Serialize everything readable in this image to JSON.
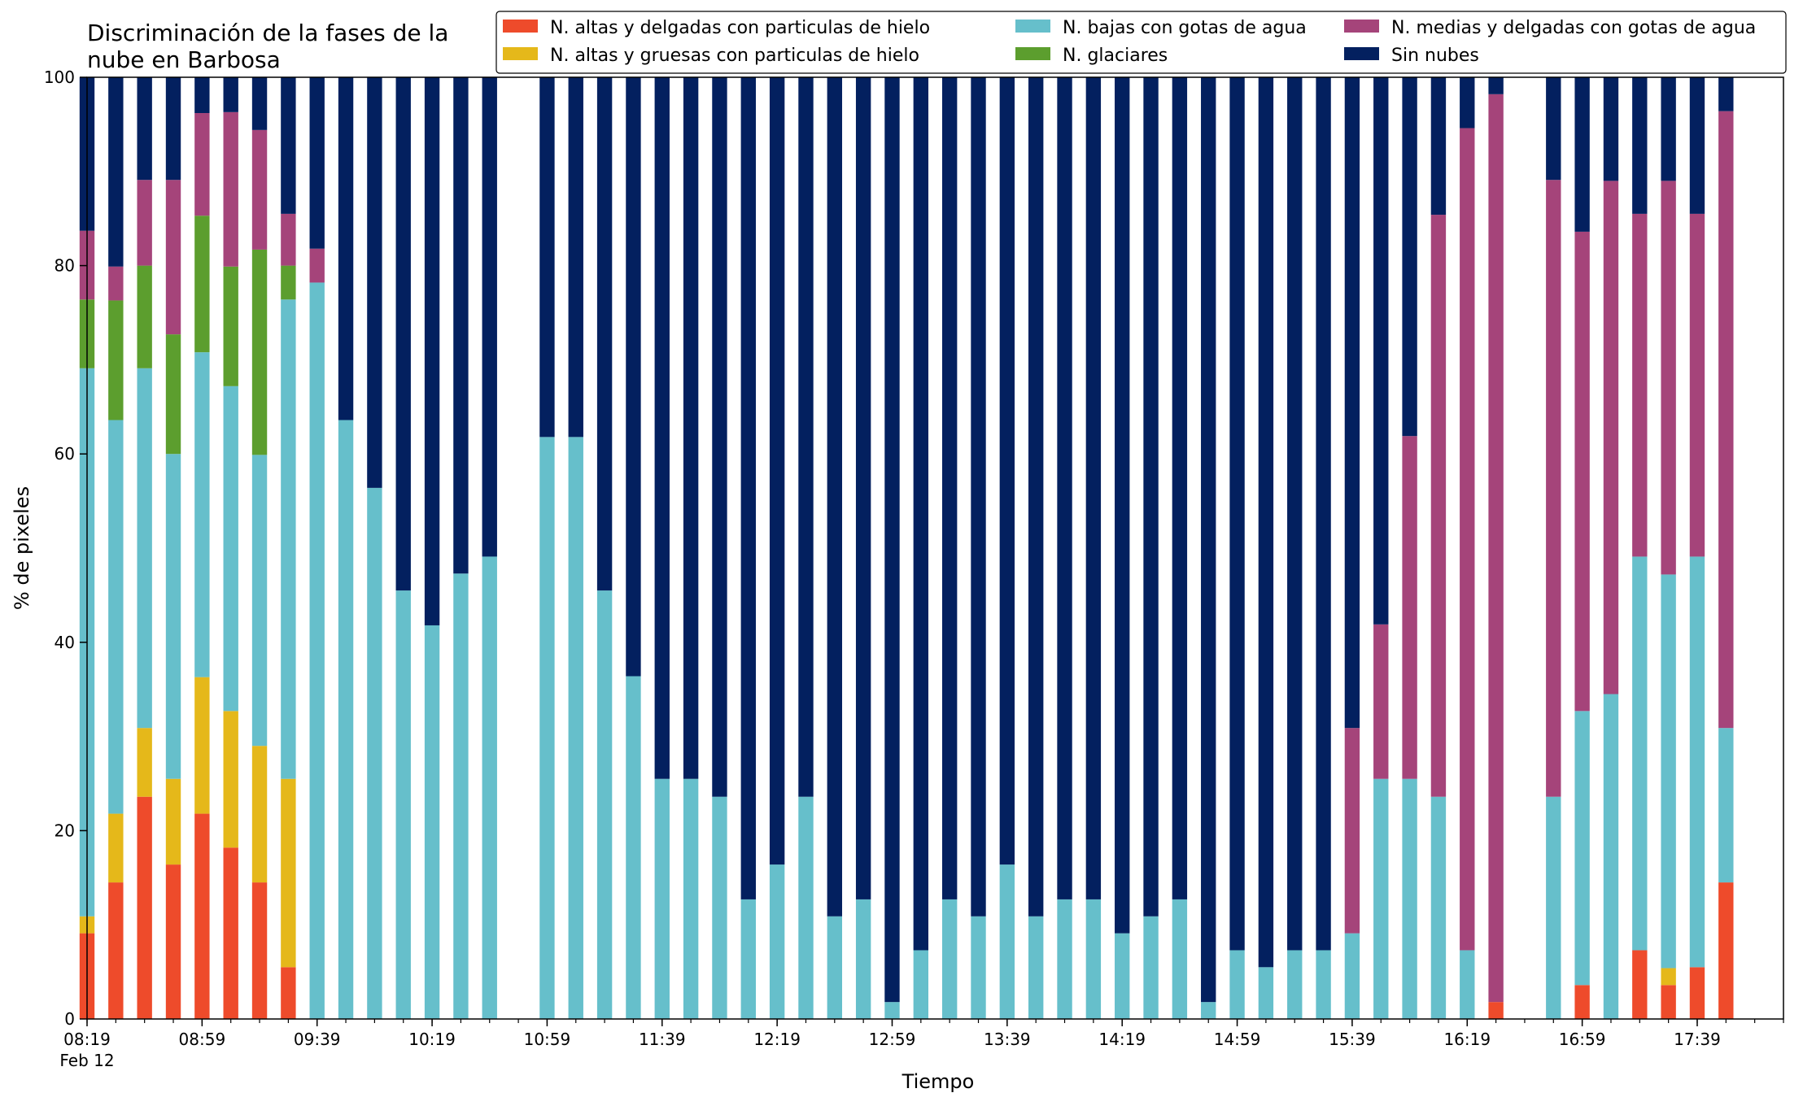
{
  "chart_data": {
    "type": "bar",
    "stacked": true,
    "title": "Discriminación de la fases de la nube en Barbosa",
    "title_lines": [
      "Discriminación de la fases de la",
      "nube en Barbosa"
    ],
    "xlabel": "Tiempo",
    "ylabel": "% de pixeles",
    "ylim": [
      0,
      100
    ],
    "yticks": [
      0,
      20,
      40,
      60,
      80,
      100
    ],
    "xlim_minutes": [
      0,
      590
    ],
    "interval_minutes": 10,
    "x_start_time": "08:19",
    "x_tick_labels": [
      "08:19",
      "08:59",
      "09:39",
      "10:19",
      "10:59",
      "11:39",
      "12:19",
      "12:59",
      "13:39",
      "14:19",
      "14:59",
      "15:39",
      "16:19",
      "16:59",
      "17:39"
    ],
    "x_date_label": "Feb 12",
    "grid": false,
    "legend_position": "top-right",
    "legend": [
      {
        "name": "N. altas y delgadas con particulas de hielo",
        "color": "#ee4b2b"
      },
      {
        "name": "N. altas y gruesas con particulas de hielo",
        "color": "#e5b81a"
      },
      {
        "name": "N. bajas con gotas de agua",
        "color": "#66bfcb"
      },
      {
        "name": "N. glaciares",
        "color": "#5c9e2e"
      },
      {
        "name": "N. medias y delgadas con gotas de agua",
        "color": "#a5447a"
      },
      {
        "name": "Sin nubes",
        "color": "#03205f"
      }
    ],
    "stack_order": [
      "N. altas y delgadas con particulas de hielo",
      "N. altas y gruesas con particulas de hielo",
      "N. bajas con gotas de agua",
      "N. glaciares",
      "N. medias y delgadas con gotas de agua",
      "Sin nubes"
    ],
    "bars": [
      {
        "time": "08:19",
        "values": [
          9.1,
          1.8,
          58.2,
          7.3,
          7.3,
          16.3
        ]
      },
      {
        "time": "08:29",
        "values": [
          14.5,
          7.3,
          41.8,
          12.7,
          3.6,
          20.1
        ]
      },
      {
        "time": "08:39",
        "values": [
          23.6,
          7.3,
          38.2,
          10.9,
          9.1,
          10.9
        ]
      },
      {
        "time": "08:49",
        "values": [
          16.4,
          9.1,
          34.5,
          12.7,
          16.4,
          10.9
        ]
      },
      {
        "time": "08:59",
        "values": [
          21.8,
          14.5,
          34.5,
          14.5,
          10.9,
          3.8
        ]
      },
      {
        "time": "09:09",
        "values": [
          18.2,
          14.5,
          34.5,
          12.7,
          16.4,
          3.7
        ]
      },
      {
        "time": "09:19",
        "values": [
          14.5,
          14.5,
          30.9,
          21.8,
          12.7,
          5.6
        ]
      },
      {
        "time": "09:29",
        "values": [
          5.5,
          20.0,
          50.9,
          3.6,
          5.5,
          14.5
        ]
      },
      {
        "time": "09:39",
        "values": [
          0,
          0,
          78.2,
          0,
          3.6,
          18.2
        ]
      },
      {
        "time": "09:49",
        "values": [
          0,
          0,
          63.6,
          0,
          0,
          36.4
        ]
      },
      {
        "time": "09:59",
        "values": [
          0,
          0,
          56.4,
          0,
          0,
          43.6
        ]
      },
      {
        "time": "10:09",
        "values": [
          0,
          0,
          45.5,
          0,
          0,
          54.5
        ]
      },
      {
        "time": "10:19",
        "values": [
          0,
          0,
          41.8,
          0,
          0,
          58.2
        ]
      },
      {
        "time": "10:29",
        "values": [
          0,
          0,
          47.3,
          0,
          0,
          52.7
        ]
      },
      {
        "time": "10:39",
        "values": [
          0,
          0,
          49.1,
          0,
          0,
          50.9
        ]
      },
      {
        "time": "10:59",
        "values": [
          0,
          0,
          61.8,
          0,
          0,
          38.2
        ]
      },
      {
        "time": "11:09",
        "values": [
          0,
          0,
          61.8,
          0,
          0,
          38.2
        ]
      },
      {
        "time": "11:19",
        "values": [
          0,
          0,
          45.5,
          0,
          0,
          54.5
        ]
      },
      {
        "time": "11:29",
        "values": [
          0,
          0,
          36.4,
          0,
          0,
          63.6
        ]
      },
      {
        "time": "11:39",
        "values": [
          0,
          0,
          25.5,
          0,
          0,
          74.5
        ]
      },
      {
        "time": "11:49",
        "values": [
          0,
          0,
          25.5,
          0,
          0,
          74.5
        ]
      },
      {
        "time": "11:59",
        "values": [
          0,
          0,
          23.6,
          0,
          0,
          76.4
        ]
      },
      {
        "time": "12:09",
        "values": [
          0,
          0,
          12.7,
          0,
          0,
          87.3
        ]
      },
      {
        "time": "12:19",
        "values": [
          0,
          0,
          16.4,
          0,
          0,
          83.6
        ]
      },
      {
        "time": "12:29",
        "values": [
          0,
          0,
          23.6,
          0,
          0,
          76.4
        ]
      },
      {
        "time": "12:39",
        "values": [
          0,
          0,
          10.9,
          0,
          0,
          89.1
        ]
      },
      {
        "time": "12:49",
        "values": [
          0,
          0,
          12.7,
          0,
          0,
          87.3
        ]
      },
      {
        "time": "12:59",
        "values": [
          0,
          0,
          1.8,
          0,
          0,
          98.2
        ]
      },
      {
        "time": "13:09",
        "values": [
          0,
          0,
          7.3,
          0,
          0,
          92.7
        ]
      },
      {
        "time": "13:19",
        "values": [
          0,
          0,
          12.7,
          0,
          0,
          87.3
        ]
      },
      {
        "time": "13:29",
        "values": [
          0,
          0,
          10.9,
          0,
          0,
          89.1
        ]
      },
      {
        "time": "13:39",
        "values": [
          0,
          0,
          16.4,
          0,
          0,
          83.6
        ]
      },
      {
        "time": "13:49",
        "values": [
          0,
          0,
          10.9,
          0,
          0,
          89.1
        ]
      },
      {
        "time": "13:59",
        "values": [
          0,
          0,
          12.7,
          0,
          0,
          87.3
        ]
      },
      {
        "time": "14:09",
        "values": [
          0,
          0,
          12.7,
          0,
          0,
          87.3
        ]
      },
      {
        "time": "14:19",
        "values": [
          0,
          0,
          9.1,
          0,
          0,
          90.9
        ]
      },
      {
        "time": "14:29",
        "values": [
          0,
          0,
          10.9,
          0,
          0,
          89.1
        ]
      },
      {
        "time": "14:39",
        "values": [
          0,
          0,
          12.7,
          0,
          0,
          87.3
        ]
      },
      {
        "time": "14:49",
        "values": [
          0,
          0,
          1.8,
          0,
          0,
          98.2
        ]
      },
      {
        "time": "14:59",
        "values": [
          0,
          0,
          7.3,
          0,
          0,
          92.7
        ]
      },
      {
        "time": "15:09",
        "values": [
          0,
          0,
          5.5,
          0,
          0,
          94.5
        ]
      },
      {
        "time": "15:19",
        "values": [
          0,
          0,
          7.3,
          0,
          0,
          92.7
        ]
      },
      {
        "time": "15:29",
        "values": [
          0,
          0,
          7.3,
          0,
          0,
          92.7
        ]
      },
      {
        "time": "15:39",
        "values": [
          0,
          0,
          9.1,
          0,
          21.8,
          69.1
        ]
      },
      {
        "time": "15:49",
        "values": [
          0,
          0,
          25.5,
          0,
          16.4,
          58.1
        ]
      },
      {
        "time": "15:59",
        "values": [
          0,
          0,
          25.5,
          0,
          36.4,
          38.1
        ]
      },
      {
        "time": "16:09",
        "values": [
          0,
          0,
          23.6,
          0,
          61.8,
          14.6
        ]
      },
      {
        "time": "16:19",
        "values": [
          0,
          0,
          7.3,
          0,
          87.3,
          5.4
        ]
      },
      {
        "time": "16:29",
        "values": [
          1.8,
          0,
          0,
          0,
          96.4,
          1.8
        ]
      },
      {
        "time": "16:49",
        "values": [
          0,
          0,
          23.6,
          0,
          65.5,
          10.9
        ]
      },
      {
        "time": "16:59",
        "values": [
          3.6,
          0,
          29.1,
          0,
          50.9,
          16.4
        ]
      },
      {
        "time": "17:09",
        "values": [
          0,
          0,
          34.5,
          0,
          54.5,
          11.0
        ]
      },
      {
        "time": "17:19",
        "values": [
          7.3,
          0,
          41.8,
          0,
          36.4,
          14.5
        ]
      },
      {
        "time": "17:29",
        "values": [
          3.6,
          1.8,
          41.8,
          0,
          41.8,
          11.0
        ]
      },
      {
        "time": "17:39",
        "values": [
          5.5,
          0,
          43.6,
          0,
          36.4,
          14.5
        ]
      },
      {
        "time": "17:49",
        "values": [
          14.5,
          0,
          16.4,
          0,
          65.5,
          3.6
        ]
      }
    ]
  }
}
